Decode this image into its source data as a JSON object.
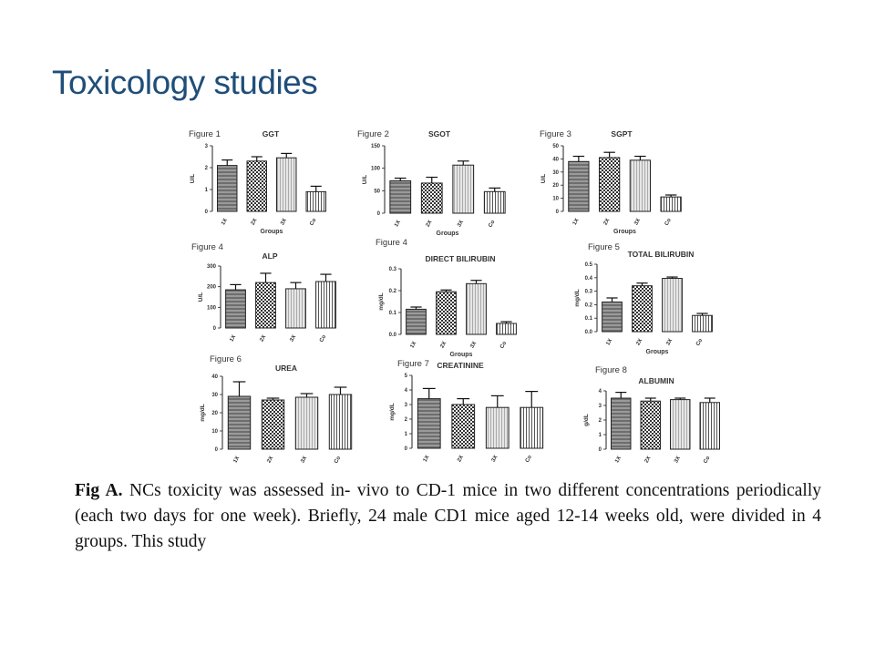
{
  "slide": {
    "title": "Toxicology studies"
  },
  "caption": {
    "lead": "Fig A.",
    "text": "NCs toxicity was assessed in- vivo to CD-1 mice in two different concentrations periodically (each two days for one week). Briefly, 24 male CD1 mice aged 12-14 weeks old, were divided in 4 groups. This study"
  },
  "colors": {
    "title": "#1f4e79",
    "bar_stroke": "#222222"
  },
  "chart_data": [
    {
      "type": "bar",
      "figure_label": "Figure 1",
      "title": "GGT",
      "ylabel": "U/L",
      "xlabel": "Groups",
      "categories": [
        "1X",
        "2X",
        "3X",
        "Co"
      ],
      "values": [
        2.1,
        2.3,
        2.45,
        0.9
      ],
      "errors": [
        0.25,
        0.2,
        0.2,
        0.25
      ],
      "ylim": [
        0,
        3
      ],
      "yticks": [
        0,
        1,
        2,
        3
      ],
      "patterns": [
        "hstripe",
        "check",
        "vstripe",
        "vline"
      ]
    },
    {
      "type": "bar",
      "figure_label": "Figure 2",
      "title": "SGOT",
      "ylabel": "U/L",
      "xlabel": "Groups",
      "categories": [
        "1X",
        "2X",
        "3X",
        "Co"
      ],
      "values": [
        72,
        67,
        107,
        48
      ],
      "errors": [
        6,
        13,
        9,
        8
      ],
      "ylim": [
        0,
        150
      ],
      "yticks": [
        0,
        50,
        100,
        150
      ],
      "patterns": [
        "hstripe",
        "check",
        "vstripe",
        "vline"
      ]
    },
    {
      "type": "bar",
      "figure_label": "Figure 3",
      "title": "SGPT",
      "ylabel": "U/L",
      "xlabel": "Groups",
      "categories": [
        "1X",
        "2X",
        "3X",
        "Co"
      ],
      "values": [
        38,
        41,
        39,
        11
      ],
      "errors": [
        4,
        4,
        3,
        1.5
      ],
      "ylim": [
        0,
        50
      ],
      "yticks": [
        0,
        10,
        20,
        30,
        40,
        50
      ],
      "patterns": [
        "hstripe",
        "check",
        "vstripe",
        "vline"
      ]
    },
    {
      "type": "bar",
      "figure_label": "Figure 4",
      "title": "ALP",
      "ylabel": "U/L",
      "xlabel": "",
      "categories": [
        "1X",
        "2X",
        "3X",
        "Co"
      ],
      "values": [
        185,
        220,
        190,
        225
      ],
      "errors": [
        25,
        45,
        30,
        35
      ],
      "ylim": [
        0,
        300
      ],
      "yticks": [
        0,
        100,
        200,
        300
      ],
      "patterns": [
        "hstripe",
        "check",
        "vstripe",
        "vline"
      ]
    },
    {
      "type": "bar",
      "figure_label": "Figure 4",
      "title": "DIRECT BILIRUBIN",
      "ylabel": "mg/dL",
      "xlabel": "Groups",
      "categories": [
        "1X",
        "2X",
        "3X",
        "Co"
      ],
      "values": [
        0.115,
        0.195,
        0.232,
        0.05
      ],
      "errors": [
        0.01,
        0.008,
        0.015,
        0.008
      ],
      "ylim": [
        0,
        0.3
      ],
      "yticks": [
        0.0,
        0.1,
        0.2,
        0.3
      ],
      "patterns": [
        "hstripe",
        "check",
        "vstripe",
        "vline"
      ]
    },
    {
      "type": "bar",
      "figure_label": "Figure 5",
      "title": "TOTAL BILIRUBIN",
      "ylabel": "mg/dL",
      "xlabel": "Groups",
      "categories": [
        "1X",
        "2X",
        "3X",
        "Co"
      ],
      "values": [
        0.22,
        0.34,
        0.395,
        0.12
      ],
      "errors": [
        0.03,
        0.02,
        0.01,
        0.015
      ],
      "ylim": [
        0,
        0.5
      ],
      "yticks": [
        0.0,
        0.1,
        0.2,
        0.3,
        0.4,
        0.5
      ],
      "patterns": [
        "hstripe",
        "check",
        "vstripe",
        "vline"
      ]
    },
    {
      "type": "bar",
      "figure_label": "Figure 6",
      "title": "UREA",
      "ylabel": "mg/dL",
      "xlabel": "",
      "categories": [
        "1X",
        "2X",
        "3X",
        "Co"
      ],
      "values": [
        29,
        27,
        28.5,
        30
      ],
      "errors": [
        8,
        1,
        2,
        4
      ],
      "ylim": [
        0,
        40
      ],
      "yticks": [
        0,
        10,
        20,
        30,
        40
      ],
      "patterns": [
        "hstripe",
        "check",
        "vstripe",
        "vline"
      ]
    },
    {
      "type": "bar",
      "figure_label": "Figure 7",
      "title": "CREATININE",
      "ylabel": "mg/dL",
      "xlabel": "",
      "categories": [
        "1X",
        "2X",
        "3X",
        "Co"
      ],
      "values": [
        3.4,
        3.0,
        2.8,
        2.8
      ],
      "errors": [
        0.7,
        0.4,
        0.8,
        1.1
      ],
      "ylim": [
        0,
        5
      ],
      "yticks": [
        0,
        1,
        2,
        3,
        4,
        5
      ],
      "patterns": [
        "hstripe",
        "check",
        "vstripe",
        "vline"
      ]
    },
    {
      "type": "bar",
      "figure_label": "Figure 8",
      "title": "ALBUMIN",
      "ylabel": "g/dL",
      "xlabel": "",
      "categories": [
        "1X",
        "2X",
        "3X",
        "Co"
      ],
      "values": [
        3.5,
        3.3,
        3.4,
        3.2
      ],
      "errors": [
        0.4,
        0.2,
        0.1,
        0.3
      ],
      "ylim": [
        0,
        4
      ],
      "yticks": [
        0,
        1,
        2,
        3,
        4
      ],
      "patterns": [
        "hstripe",
        "check",
        "vstripe",
        "vline"
      ]
    }
  ]
}
